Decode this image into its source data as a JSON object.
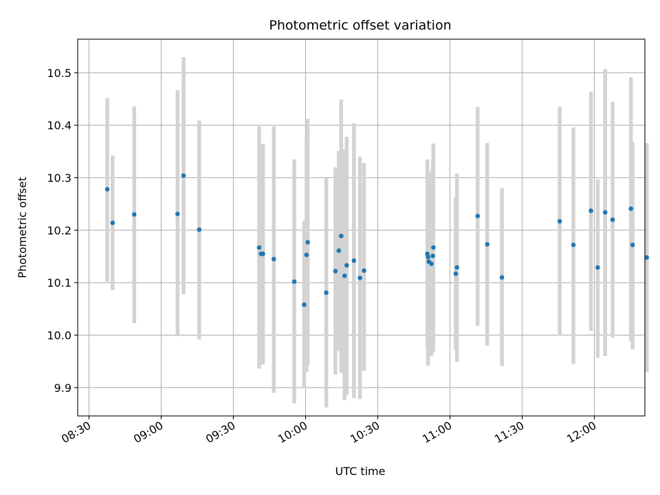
{
  "chart_data": {
    "type": "scatter",
    "title": "Photometric offset variation",
    "xlabel": "UTC time",
    "ylabel": "Photometric offset",
    "grid": true,
    "xlim_minutes": [
      505.3,
      741.0
    ],
    "ylim": [
      9.846,
      10.564
    ],
    "x_ticks": [
      {
        "minutes": 510,
        "label": "08:30"
      },
      {
        "minutes": 540,
        "label": "09:00"
      },
      {
        "minutes": 570,
        "label": "09:30"
      },
      {
        "minutes": 600,
        "label": "10:00"
      },
      {
        "minutes": 630,
        "label": "10:30"
      },
      {
        "minutes": 660,
        "label": "11:00"
      },
      {
        "minutes": 690,
        "label": "11:30"
      },
      {
        "minutes": 720,
        "label": "12:00"
      }
    ],
    "y_ticks": [
      {
        "value": 9.9,
        "label": "9.9"
      },
      {
        "value": 10.0,
        "label": "10.0"
      },
      {
        "value": 10.1,
        "label": "10.1"
      },
      {
        "value": 10.2,
        "label": "10.2"
      },
      {
        "value": 10.3,
        "label": "10.3"
      },
      {
        "value": 10.4,
        "label": "10.4"
      },
      {
        "value": 10.5,
        "label": "10.5"
      }
    ],
    "series": [
      {
        "name": "offset",
        "marker_color": "#1f77b4",
        "errorbar_color": "#d3d3d3",
        "x_minutes": [
          517.6,
          519.8,
          528.8,
          546.8,
          549.3,
          555.8,
          580.7,
          581.5,
          582.3,
          586.8,
          595.3,
          599.4,
          600.4,
          600.9,
          608.6,
          612.4,
          613.8,
          614.8,
          616.2,
          617.1,
          620.1,
          622.6,
          624.3,
          650.6,
          650.9,
          651.2,
          652.3,
          652.9,
          653.1,
          662.4,
          662.9,
          671.5,
          675.5,
          681.6,
          705.6,
          711.3,
          718.6,
          721.4,
          724.5,
          727.6,
          735.2,
          735.9,
          741.8
        ],
        "y": [
          10.278,
          10.214,
          10.23,
          10.231,
          10.304,
          10.201,
          10.167,
          10.155,
          10.155,
          10.145,
          10.102,
          10.058,
          10.153,
          10.177,
          10.081,
          10.122,
          10.161,
          10.189,
          10.113,
          10.133,
          10.142,
          10.109,
          10.123,
          10.155,
          10.149,
          10.14,
          10.136,
          10.151,
          10.167,
          10.117,
          10.129,
          10.227,
          10.173,
          10.11,
          10.217,
          10.172,
          10.237,
          10.129,
          10.234,
          10.22,
          10.241,
          10.172,
          10.148
        ],
        "err_low": [
          10.102,
          10.086,
          10.023,
          9.998,
          10.078,
          9.992,
          9.936,
          9.944,
          9.944,
          9.89,
          9.87,
          9.899,
          9.93,
          9.943,
          9.862,
          9.925,
          9.97,
          9.928,
          9.876,
          9.886,
          9.88,
          9.878,
          9.932,
          9.978,
          9.942,
          9.975,
          9.96,
          9.967,
          9.97,
          9.972,
          9.949,
          10.018,
          9.98,
          9.941,
          9.999,
          9.945,
          10.008,
          9.957,
          9.96,
          9.995,
          9.989,
          9.973,
          9.929
        ],
        "err_high": [
          10.452,
          10.342,
          10.436,
          10.467,
          10.53,
          10.409,
          10.398,
          10.364,
          10.364,
          10.398,
          10.335,
          10.218,
          10.376,
          10.412,
          10.299,
          10.32,
          10.351,
          10.449,
          10.354,
          10.378,
          10.404,
          10.34,
          10.328,
          10.335,
          10.307,
          10.306,
          10.312,
          10.334,
          10.365,
          10.262,
          10.308,
          10.435,
          10.366,
          10.28,
          10.435,
          10.396,
          10.464,
          10.297,
          10.507,
          10.445,
          10.492,
          10.368,
          10.366
        ]
      }
    ]
  }
}
